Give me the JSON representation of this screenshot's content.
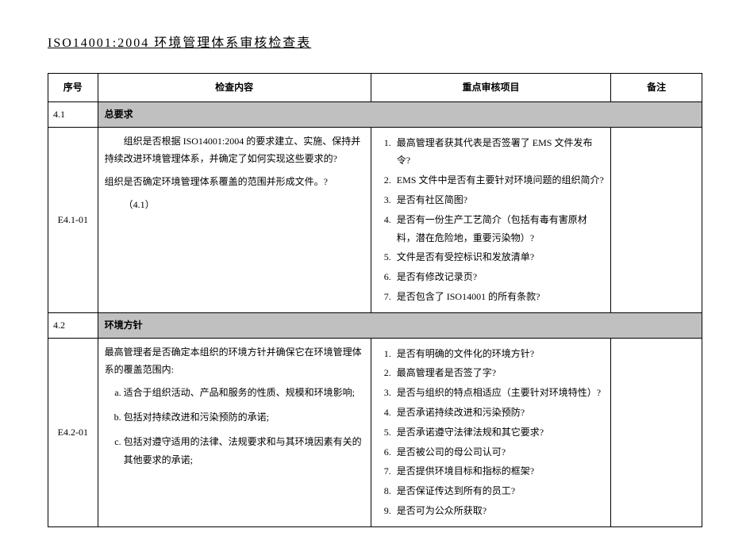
{
  "title": "ISO14001:2004 环境管理体系审核检查表",
  "headers": {
    "seq": "序号",
    "check": "检查内容",
    "audit": "重点审核项目",
    "note": "备注"
  },
  "sections": [
    {
      "seq": "4.1",
      "name": "总要求",
      "row": {
        "seq": "E4.1-01",
        "check_paras": [
          "组织是否根据 ISO14001:2004 的要求建立、实施、保持并持续改进环境管理体系，并确定了如何实现这些要求的?",
          "组织是否确定环境管理体系覆盖的范围并形成文件。?",
          "（4.1）"
        ],
        "audit_items": [
          "最高管理者获其代表是否签署了 EMS 文件发布令?",
          "EMS 文件中是否有主要针对环境问题的组织简介?",
          "是否有社区简图?",
          "是否有一份生产工艺简介（包括有毒有害原材料，潜在危险地，重要污染物）?",
          "文件是否有受控标识和发放清单?",
          "是否有修改记录页?",
          "是否包含了 ISO14001 的所有条款?"
        ]
      }
    },
    {
      "seq": "4.2",
      "name": "环境方针",
      "row": {
        "seq": "E4.2-01",
        "check_lead": "最高管理者是否确定本组织的环境方针并确保它在环境管理体 系的覆盖范围内:",
        "check_alpha": [
          "适合于组织活动、产品和服务的性质、规模和环境影响;",
          "包括对持续改进和污染预防的承诺;",
          "包括对遵守适用的法律、法规要求和与其环境因素有关的其他要求的承诺;"
        ],
        "audit_items": [
          "是否有明确的文件化的环境方针?",
          "最高管理者是否签了字?",
          "是否与组织的特点相适应（主要针对环境特性）?",
          "是否承诺持续改进和污染预防?",
          "是否承诺遵守法律法规和其它要求?",
          "是否被公司的母公司认可?",
          "是否提供环境目标和指标的框架?",
          "是否保证传达到所有的员工?",
          "是否可为公众所获取?"
        ]
      }
    }
  ]
}
